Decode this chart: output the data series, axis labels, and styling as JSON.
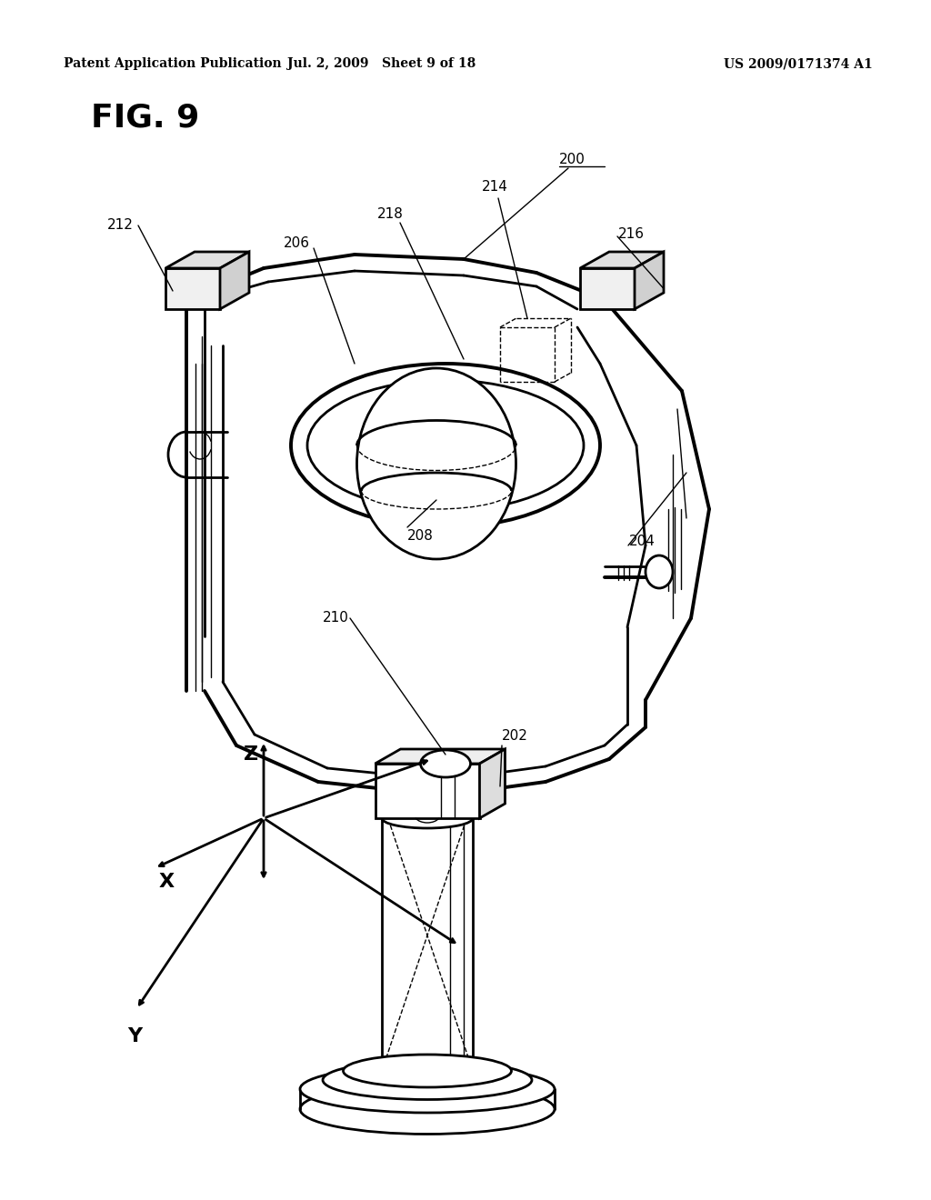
{
  "header_left": "Patent Application Publication",
  "header_center": "Jul. 2, 2009   Sheet 9 of 18",
  "header_right": "US 2009/0171374 A1",
  "fig_label": "FIG. 9",
  "background_color": "#ffffff",
  "line_color": "#000000",
  "text_color": "#000000",
  "lw_main": 2.0,
  "lw_thin": 1.0,
  "lw_thick": 2.8
}
